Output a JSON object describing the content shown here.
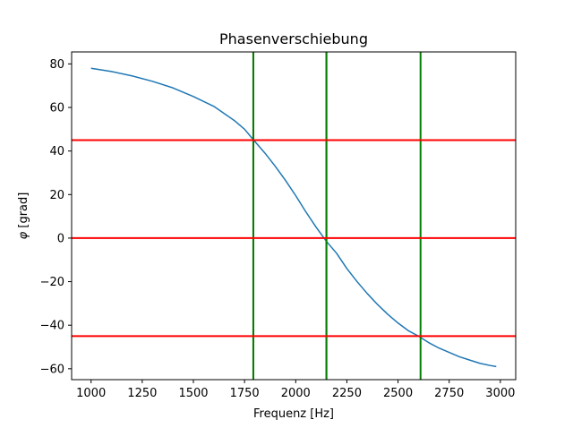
{
  "chart_data": {
    "type": "line",
    "title": "Phasenverschiebung",
    "xlabel": "Frequenz [Hz]",
    "ylabel_symbol": "φ",
    "ylabel_unit": "[grad]",
    "xlim": [
      905,
      3075
    ],
    "ylim": [
      -65,
      85.5
    ],
    "xticks": [
      1000,
      1250,
      1500,
      1750,
      2000,
      2250,
      2500,
      2750,
      3000
    ],
    "yticks": [
      -60,
      -40,
      -20,
      0,
      20,
      40,
      60,
      80
    ],
    "grid": false,
    "series": [
      {
        "color": "#1f77b4",
        "x": [
          1000,
          1100,
          1200,
          1300,
          1400,
          1500,
          1600,
          1700,
          1750,
          1790,
          1850,
          1900,
          1950,
          2000,
          2050,
          2100,
          2150,
          2200,
          2250,
          2300,
          2350,
          2400,
          2450,
          2500,
          2550,
          2600,
          2650,
          2700,
          2750,
          2800,
          2850,
          2900,
          2950,
          2980
        ],
        "y": [
          78,
          76.5,
          74.5,
          72,
          69,
          65,
          60.5,
          54,
          50,
          45.5,
          39,
          33,
          26.5,
          19.5,
          12,
          5,
          -1.5,
          -7,
          -14,
          -20,
          -25.5,
          -30.5,
          -35,
          -39,
          -42.5,
          -45,
          -48,
          -50.5,
          -52.5,
          -54.5,
          -56,
          -57.5,
          -58.5,
          -59
        ]
      }
    ],
    "hlines": {
      "color": "#ff0000",
      "values": [
        45,
        0,
        -45
      ]
    },
    "vlines": [
      {
        "x": 1793,
        "colors": [
          "#808000",
          "#ff0000",
          "#008000"
        ]
      },
      {
        "x": 2150,
        "colors": [
          "#808000",
          "#ff0000",
          "#008000"
        ]
      },
      {
        "x": 2610,
        "colors": [
          "#008000"
        ]
      }
    ]
  }
}
